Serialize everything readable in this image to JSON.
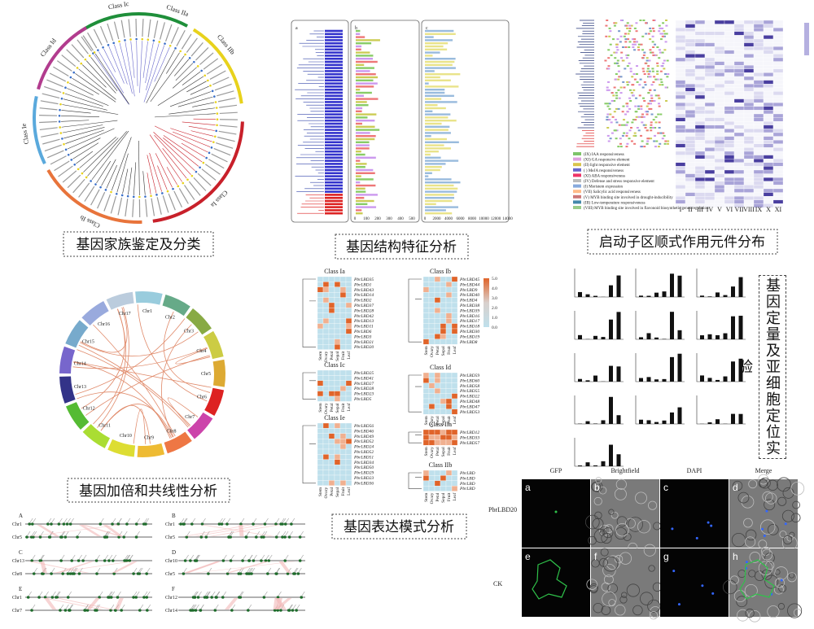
{
  "family": {
    "caption": "基因家族鉴定及分类",
    "classes": [
      "Class Ic",
      "Class IIa",
      "Class IIb",
      "Class Ia",
      "Class Ib",
      "Class Ie",
      "Class Id"
    ]
  },
  "structure": {
    "caption": "基因结构特征分析",
    "panels": [
      "a",
      "b",
      "c"
    ],
    "axis_b": [
      0,
      100,
      200,
      300,
      400,
      500
    ],
    "axis_c": [
      0,
      2000,
      4000,
      6000,
      8000,
      10000,
      12000,
      14000
    ]
  },
  "promoter": {
    "caption": "启动子区顺式作用元件分布",
    "legend": [
      "(IX) IAA responsiveness",
      "(XI) GA responsive element",
      "(II) light responsive element",
      "( ) MeJA responsiveness",
      "(XI) ABA responsiveness",
      "(IV) Defense and stress responsive element",
      "(I) Meristem expression",
      "(VII) Salicylic acid responsiveness",
      "(V) MYB binding site involved in drought-inducibility",
      "(III) Low-temperature responsiveness",
      "(VIII) MYB binding site involved in flavonoid biosynthetic genes regulation"
    ],
    "columns": [
      "I",
      "II",
      "III",
      "IV",
      "V",
      "VI",
      "VII",
      "VIII",
      "IX",
      "X",
      "XI"
    ]
  },
  "collinearity": {
    "caption": "基因加倍和共线性分析",
    "chromosomes": [
      "Chr1",
      "Chr2",
      "Chr3",
      "Chr4",
      "Chr5",
      "Chr6",
      "Chr7",
      "Chr8",
      "Chr9",
      "Chr10",
      "Chr11",
      "Chr12",
      "Chr13",
      "Chr14",
      "Chr15",
      "Chr16",
      "Chr17"
    ],
    "panels": [
      {
        "label": "A",
        "chrs": [
          "Chr1",
          "Chr5"
        ]
      },
      {
        "label": "B",
        "chrs": [
          "Chr1",
          "Chr5"
        ]
      },
      {
        "label": "C",
        "chrs": [
          "Chr13",
          "Chr8"
        ]
      },
      {
        "label": "D",
        "chrs": [
          "Chr10",
          "Chr5"
        ]
      },
      {
        "label": "E",
        "chrs": [
          "Chr1",
          "Chr7"
        ]
      },
      {
        "label": "F",
        "chrs": [
          "Chr12",
          "Chr14"
        ]
      }
    ]
  },
  "expression": {
    "caption": "基因表达模式分析",
    "tissues": [
      "Stem",
      "Ovary",
      "Petal",
      "Sepal",
      "Fruit",
      "Leaf"
    ],
    "scale": [
      "5.0",
      "4.0",
      "3.0",
      "2.0",
      "1.0",
      "0.0"
    ],
    "groups": [
      {
        "title": "Class Ia",
        "genes": [
          "PbrLBD35",
          "PbrLBD1",
          "PbrLBD43",
          "PbrLBD14",
          "PbrLBD2",
          "PbrLBD37",
          "PbrLBD28",
          "PbrLBD42",
          "PbrLBD13",
          "PbrLBD11",
          "PbrLBD6",
          "PbrLBD3",
          "PbrLBD21",
          "PbrLBD20"
        ]
      },
      {
        "title": "Class Ib",
        "genes": [
          "PbrLBD45",
          "PbrLBD44",
          "PbrLBD9",
          "PbrLBD40",
          "PbrLBD4",
          "PbrLBD38",
          "PbrLBD39",
          "PbrLBD16",
          "PbrLBD17",
          "PbrLBD18",
          "PbrLBD30",
          "PbrLBD19",
          "PbrLBD8"
        ]
      },
      {
        "title": "Class Ic",
        "genes": [
          "PbrLBD25",
          "PbrLBD41",
          "PbrLBD27",
          "PbrLBD28",
          "PbrLBD23",
          "PbrLBD5"
        ]
      },
      {
        "title": "Class Id",
        "genes": [
          "PbrLBD59",
          "PbrLBD60",
          "PbrLBD58",
          "PbrLBD55",
          "PbrLBD22",
          "PbrLBD48",
          "PbrLBD47",
          "PbrLBD53"
        ]
      },
      {
        "title": "Class Ie",
        "genes": [
          "PbrLBD56",
          "PbrLBD46",
          "PbrLBD49",
          "PbrLBD52",
          "PbrLBD24",
          "PbrLBD52",
          "PbrLBD51",
          "PbrLBD34",
          "PbrLBD50",
          "PbrLBD29",
          "PbrLBD23",
          "PbrLBD36"
        ]
      },
      {
        "title": "Class IIa",
        "genes": [
          "PbrLBD12",
          "PbrLBD33",
          "PbrLBD57"
        ]
      },
      {
        "title": "Class IIb",
        "genes": [
          "PbrLBD",
          "PbrLBD",
          "PbrLBD",
          "PbrLBD"
        ]
      }
    ]
  },
  "localization": {
    "caption": "基因定量及亚细胞定位实验",
    "columns": [
      "GFP",
      "Brightfield",
      "DAPI",
      "Merge"
    ],
    "rows": [
      "PbrLBD20",
      "CK"
    ],
    "panels": [
      "a",
      "b",
      "c",
      "d",
      "e",
      "f",
      "g",
      "h"
    ]
  }
}
